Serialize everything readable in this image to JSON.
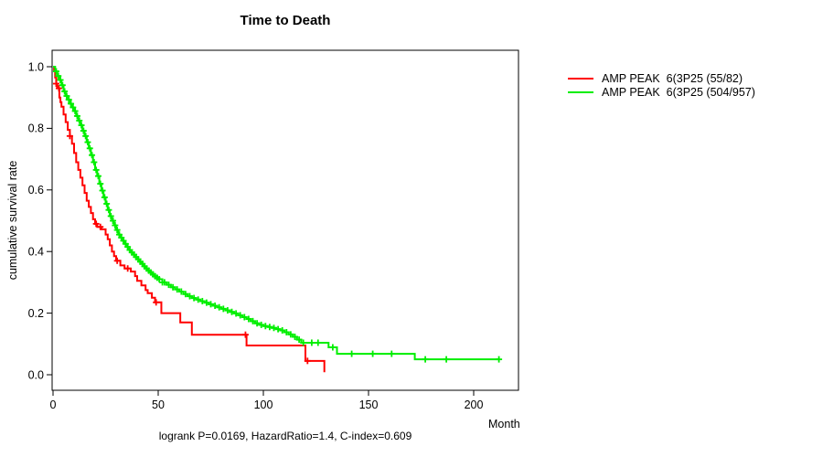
{
  "chart_data": {
    "type": "line",
    "subtype": "kaplan-meier-step-survival",
    "title": "Time to Death",
    "xlabel": "Month",
    "ylabel": "cumulative survival rate",
    "footer": "logrank P=0.0169, HazardRatio=1.4, C-index=0.609",
    "xlim": [
      0,
      221
    ],
    "ylim": [
      0.0,
      1.0
    ],
    "grid": false,
    "legend_position": "outside-top-right",
    "xticks": [
      {
        "v": 0,
        "label": "0"
      },
      {
        "v": 50,
        "label": "50"
      },
      {
        "v": 100,
        "label": "100"
      },
      {
        "v": 150,
        "label": "150"
      },
      {
        "v": 200,
        "label": "200"
      }
    ],
    "yticks": [
      {
        "v": 0.0,
        "label": "0.0"
      },
      {
        "v": 0.2,
        "label": "0.2"
      },
      {
        "v": 0.4,
        "label": "0.4"
      },
      {
        "v": 0.6,
        "label": "0.6"
      },
      {
        "v": 0.8,
        "label": "0.8"
      },
      {
        "v": 1.0,
        "label": "1.0"
      }
    ],
    "series": [
      {
        "name": "AMP PEAK  6(3P25 (55/82)",
        "color": "#ff0000",
        "points": [
          [
            0,
            1.0
          ],
          [
            0.5,
            0.985
          ],
          [
            1,
            0.965
          ],
          [
            1.5,
            0.945
          ],
          [
            2,
            0.93
          ],
          [
            3,
            0.9
          ],
          [
            3.5,
            0.885
          ],
          [
            4,
            0.87
          ],
          [
            5,
            0.845
          ],
          [
            6,
            0.82
          ],
          [
            7,
            0.795
          ],
          [
            8,
            0.775
          ],
          [
            9,
            0.75
          ],
          [
            10,
            0.72
          ],
          [
            11,
            0.69
          ],
          [
            12,
            0.665
          ],
          [
            13,
            0.64
          ],
          [
            14,
            0.615
          ],
          [
            15,
            0.59
          ],
          [
            16,
            0.565
          ],
          [
            17,
            0.545
          ],
          [
            18,
            0.525
          ],
          [
            19,
            0.505
          ],
          [
            20,
            0.49
          ],
          [
            21,
            0.48
          ],
          [
            23,
            0.472
          ],
          [
            25,
            0.455
          ],
          [
            26,
            0.44
          ],
          [
            27,
            0.42
          ],
          [
            28,
            0.4
          ],
          [
            29,
            0.385
          ],
          [
            30,
            0.37
          ],
          [
            32,
            0.355
          ],
          [
            34,
            0.345
          ],
          [
            37,
            0.335
          ],
          [
            39,
            0.32
          ],
          [
            40,
            0.305
          ],
          [
            42,
            0.29
          ],
          [
            44,
            0.275
          ],
          [
            45,
            0.265
          ],
          [
            47,
            0.25
          ],
          [
            48.5,
            0.235
          ],
          [
            51.5,
            0.2
          ],
          [
            60.5,
            0.17
          ],
          [
            66,
            0.13
          ],
          [
            92,
            0.095
          ],
          [
            120,
            0.045
          ],
          [
            129,
            0.008
          ]
        ],
        "censor_months": [
          1.5,
          2.8,
          8,
          20.5,
          22.5,
          30.5,
          35.5,
          49,
          91.5,
          121
        ]
      },
      {
        "name": "AMP PEAK  6(3P25 (504/957)",
        "color": "#00ee00",
        "points": [
          [
            0,
            1.0
          ],
          [
            1,
            0.985
          ],
          [
            2,
            0.97
          ],
          [
            3,
            0.957
          ],
          [
            4,
            0.94
          ],
          [
            5,
            0.92
          ],
          [
            6,
            0.905
          ],
          [
            7,
            0.893
          ],
          [
            8,
            0.88
          ],
          [
            9,
            0.868
          ],
          [
            10,
            0.856
          ],
          [
            11,
            0.84
          ],
          [
            12,
            0.825
          ],
          [
            13,
            0.81
          ],
          [
            14,
            0.792
          ],
          [
            15,
            0.775
          ],
          [
            16,
            0.755
          ],
          [
            17,
            0.735
          ],
          [
            18,
            0.713
          ],
          [
            19,
            0.69
          ],
          [
            20,
            0.665
          ],
          [
            21,
            0.645
          ],
          [
            22,
            0.62
          ],
          [
            23,
            0.598
          ],
          [
            24,
            0.576
          ],
          [
            25,
            0.555
          ],
          [
            26,
            0.535
          ],
          [
            27,
            0.515
          ],
          [
            28,
            0.5
          ],
          [
            29,
            0.485
          ],
          [
            30,
            0.47
          ],
          [
            31,
            0.455
          ],
          [
            32,
            0.445
          ],
          [
            33,
            0.435
          ],
          [
            34,
            0.425
          ],
          [
            35,
            0.415
          ],
          [
            36,
            0.405
          ],
          [
            37,
            0.397
          ],
          [
            38,
            0.39
          ],
          [
            39,
            0.382
          ],
          [
            40,
            0.375
          ],
          [
            41,
            0.367
          ],
          [
            42,
            0.36
          ],
          [
            43,
            0.352
          ],
          [
            44,
            0.345
          ],
          [
            45,
            0.338
          ],
          [
            46,
            0.332
          ],
          [
            47,
            0.326
          ],
          [
            48,
            0.32
          ],
          [
            49,
            0.315
          ],
          [
            50,
            0.31
          ],
          [
            52,
            0.3
          ],
          [
            54,
            0.292
          ],
          [
            56,
            0.284
          ],
          [
            58,
            0.277
          ],
          [
            60,
            0.27
          ],
          [
            62,
            0.262
          ],
          [
            64,
            0.255
          ],
          [
            66,
            0.249
          ],
          [
            68,
            0.244
          ],
          [
            70,
            0.239
          ],
          [
            72,
            0.234
          ],
          [
            74,
            0.229
          ],
          [
            76,
            0.224
          ],
          [
            78,
            0.219
          ],
          [
            80,
            0.214
          ],
          [
            82,
            0.209
          ],
          [
            84,
            0.204
          ],
          [
            86,
            0.199
          ],
          [
            88,
            0.193
          ],
          [
            90,
            0.187
          ],
          [
            92,
            0.181
          ],
          [
            94,
            0.174
          ],
          [
            96,
            0.167
          ],
          [
            98,
            0.162
          ],
          [
            100,
            0.158
          ],
          [
            102,
            0.155
          ],
          [
            104,
            0.152
          ],
          [
            106,
            0.148
          ],
          [
            108,
            0.144
          ],
          [
            110,
            0.138
          ],
          [
            112,
            0.131
          ],
          [
            114,
            0.123
          ],
          [
            116,
            0.114
          ],
          [
            118,
            0.104
          ],
          [
            131,
            0.089
          ],
          [
            135,
            0.068
          ],
          [
            172,
            0.05
          ],
          [
            212,
            0.05
          ]
        ],
        "censor_months": [
          1.5,
          2.5,
          3.5,
          4.5,
          5.5,
          6.5,
          7.5,
          8.5,
          9.5,
          10.5,
          11.5,
          12.5,
          13.5,
          14.5,
          15.5,
          16.5,
          17.5,
          18.5,
          19.5,
          20.5,
          21.5,
          22.5,
          23.5,
          24.5,
          25.5,
          26.5,
          27.5,
          28.5,
          29.5,
          30.5,
          31.5,
          32.5,
          33.5,
          34.5,
          35.5,
          36.5,
          37.5,
          38.5,
          39.5,
          40.5,
          41.5,
          42.5,
          43.5,
          44.5,
          45.5,
          46.5,
          47.5,
          48.5,
          49.5,
          50.5,
          52,
          53,
          55,
          57,
          59,
          61,
          63,
          65,
          67,
          69,
          71,
          73,
          75,
          77,
          79,
          81,
          83,
          85,
          87,
          89,
          91,
          93,
          95,
          97,
          99,
          101,
          103,
          105,
          107,
          109,
          111,
          113,
          115,
          117,
          119,
          123,
          126,
          133,
          142,
          152,
          161,
          177,
          187,
          212
        ]
      }
    ]
  }
}
